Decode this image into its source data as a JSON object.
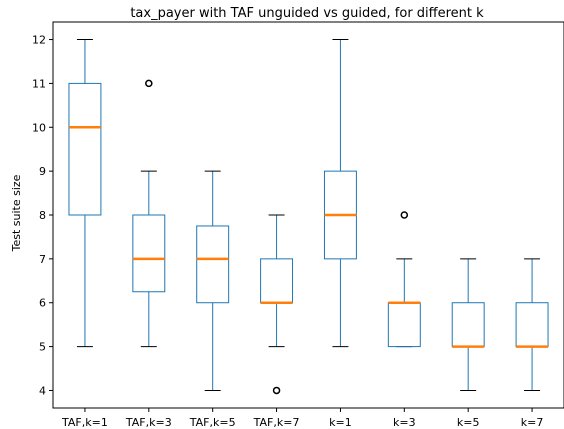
{
  "chart_data": {
    "type": "boxplot",
    "title": "tax_payer with TAF unguided vs guided, for different k",
    "xlabel": "",
    "ylabel": "Test suite size",
    "ylim": [
      3.6,
      12.4
    ],
    "yticks": [
      4,
      5,
      6,
      7,
      8,
      9,
      10,
      11,
      12
    ],
    "grid": false,
    "colors": {
      "box": "#1f77b4",
      "median": "#ff7f0e",
      "whisker": "#000000",
      "flier": "#000000"
    },
    "categories": [
      "TAF,k=1",
      "TAF,k=3",
      "TAF,k=5",
      "TAF,k=7",
      "k=1",
      "k=3",
      "k=5",
      "k=7"
    ],
    "boxes": [
      {
        "label": "TAF,k=1",
        "whislo": 5,
        "q1": 8,
        "med": 10,
        "q3": 11,
        "whishi": 12,
        "fliers": []
      },
      {
        "label": "TAF,k=3",
        "whislo": 5,
        "q1": 6.25,
        "med": 7,
        "q3": 8,
        "whishi": 9,
        "fliers": [
          11
        ]
      },
      {
        "label": "TAF,k=5",
        "whislo": 4,
        "q1": 6,
        "med": 7,
        "q3": 7.75,
        "whishi": 9,
        "fliers": []
      },
      {
        "label": "TAF,k=7",
        "whislo": 5,
        "q1": 6,
        "med": 6,
        "q3": 7,
        "whishi": 8,
        "fliers": [
          4
        ]
      },
      {
        "label": "k=1",
        "whislo": 5,
        "q1": 7,
        "med": 8,
        "q3": 9,
        "whishi": 12,
        "fliers": []
      },
      {
        "label": "k=3",
        "whislo": 5,
        "q1": 5,
        "med": 6,
        "q3": 6,
        "whishi": 7,
        "fliers": [
          8
        ]
      },
      {
        "label": "k=5",
        "whislo": 4,
        "q1": 5,
        "med": 5,
        "q3": 6,
        "whishi": 7,
        "fliers": []
      },
      {
        "label": "k=7",
        "whislo": 4,
        "q1": 5,
        "med": 5,
        "q3": 6,
        "whishi": 7,
        "fliers": []
      }
    ]
  }
}
